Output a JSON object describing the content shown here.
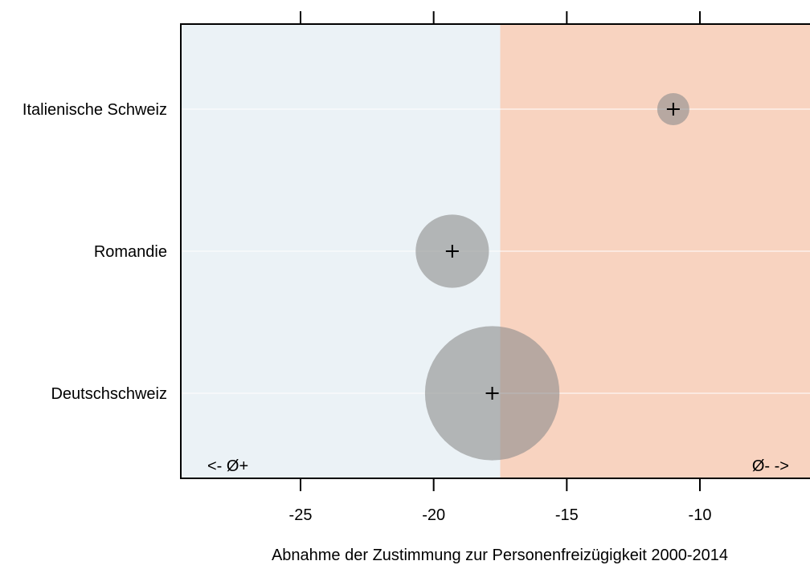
{
  "chart_data": {
    "type": "scatter",
    "xlabel": "Abnahme der Zustimmung zur Personenfreizügigkeit 2000-2014",
    "xlim": [
      -29.5,
      -5
    ],
    "xticks": [
      -25,
      -20,
      -15,
      -10
    ],
    "grid": true,
    "categories": [
      "Italienische Schweiz",
      "Romandie",
      "Deutschschweiz"
    ],
    "points": [
      {
        "label": "Italienische Schweiz",
        "x": -11.0,
        "size": 1
      },
      {
        "label": "Romandie",
        "x": -19.3,
        "size": 5.2
      },
      {
        "label": "Deutschschweiz",
        "x": -17.8,
        "size": 17.5
      }
    ],
    "reference_line": -17.5,
    "regions": {
      "left_label": "<- Ø+",
      "right_label": "Ø- ->",
      "left_color": "#ebf2f6",
      "right_color": "#f8d3c0"
    },
    "bubble_color": "#8c8c8c"
  }
}
